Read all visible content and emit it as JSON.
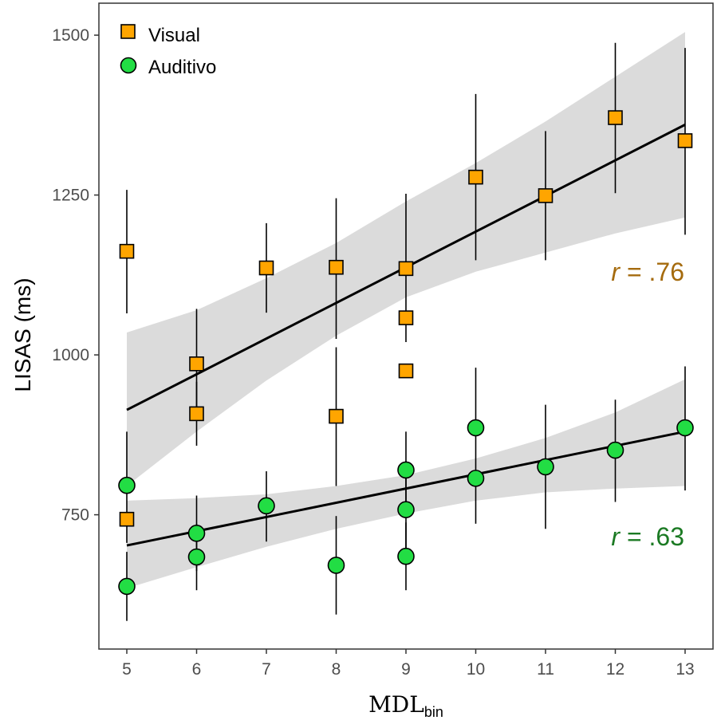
{
  "chart_data": {
    "type": "scatter",
    "xlabel": "MDL",
    "xlabel_sub": "bin",
    "ylabel": "LISAS (ms)",
    "xlim": [
      4.6,
      13.4
    ],
    "ylim": [
      540,
      1550
    ],
    "x_ticks": [
      5,
      6,
      7,
      8,
      9,
      10,
      11,
      12,
      13
    ],
    "y_ticks": [
      750,
      1000,
      1250,
      1500
    ],
    "grid": false,
    "legend_position": "top-left",
    "series": [
      {
        "name": "Visual",
        "marker": "square",
        "color": "#FFA500",
        "points": [
          {
            "x": 5,
            "y": 1162,
            "lo": 1065,
            "hi": 1258
          },
          {
            "x": 5,
            "y": 743,
            "lo": 743,
            "hi": 743
          },
          {
            "x": 6,
            "y": 986,
            "lo": 900,
            "hi": 1072
          },
          {
            "x": 6,
            "y": 908,
            "lo": 858,
            "hi": 958
          },
          {
            "x": 7,
            "y": 1136,
            "lo": 1066,
            "hi": 1206
          },
          {
            "x": 8,
            "y": 1137,
            "lo": 1025,
            "hi": 1245
          },
          {
            "x": 8,
            "y": 904,
            "lo": 795,
            "hi": 1012
          },
          {
            "x": 9,
            "y": 1135,
            "lo": 1020,
            "hi": 1252
          },
          {
            "x": 9,
            "y": 1058,
            "lo": 1058,
            "hi": 1058
          },
          {
            "x": 9,
            "y": 975,
            "lo": 975,
            "hi": 975
          },
          {
            "x": 10,
            "y": 1278,
            "lo": 1148,
            "hi": 1408
          },
          {
            "x": 11,
            "y": 1249,
            "lo": 1148,
            "hi": 1350
          },
          {
            "x": 12,
            "y": 1371,
            "lo": 1253,
            "hi": 1488
          },
          {
            "x": 13,
            "y": 1335,
            "lo": 1188,
            "hi": 1480
          }
        ],
        "fit": {
          "x0": 5,
          "y0": 914,
          "x1": 13,
          "y1": 1360
        },
        "ci": {
          "x": [
            5,
            6,
            7,
            8,
            9,
            10,
            11,
            12,
            13
          ],
          "lo": [
            795,
            880,
            960,
            1030,
            1090,
            1130,
            1160,
            1190,
            1215
          ],
          "hi": [
            1035,
            1070,
            1120,
            1175,
            1240,
            1300,
            1365,
            1435,
            1505
          ]
        },
        "r_label": "r = .76",
        "r_color": "#A56B0E"
      },
      {
        "name": "Auditivo",
        "marker": "circle",
        "color": "#22DD44",
        "points": [
          {
            "x": 5,
            "y": 796,
            "lo": 706,
            "hi": 880
          },
          {
            "x": 5,
            "y": 638,
            "lo": 584,
            "hi": 692
          },
          {
            "x": 6,
            "y": 721,
            "lo": 662,
            "hi": 780
          },
          {
            "x": 6,
            "y": 684,
            "lo": 632,
            "hi": 736
          },
          {
            "x": 7,
            "y": 764,
            "lo": 708,
            "hi": 818
          },
          {
            "x": 8,
            "y": 671,
            "lo": 594,
            "hi": 748
          },
          {
            "x": 9,
            "y": 820,
            "lo": 758,
            "hi": 880
          },
          {
            "x": 9,
            "y": 758,
            "lo": 682,
            "hi": 834
          },
          {
            "x": 9,
            "y": 685,
            "lo": 632,
            "hi": 738
          },
          {
            "x": 10,
            "y": 886,
            "lo": 886,
            "hi": 980
          },
          {
            "x": 10,
            "y": 807,
            "lo": 736,
            "hi": 878
          },
          {
            "x": 11,
            "y": 825,
            "lo": 728,
            "hi": 922
          },
          {
            "x": 12,
            "y": 851,
            "lo": 770,
            "hi": 930
          },
          {
            "x": 13,
            "y": 886,
            "lo": 788,
            "hi": 982
          }
        ],
        "fit": {
          "x0": 5,
          "y0": 702,
          "x1": 13,
          "y1": 880
        },
        "ci": {
          "x": [
            5,
            6,
            7,
            8,
            9,
            10,
            11,
            12,
            13
          ],
          "lo": [
            635,
            668,
            700,
            728,
            752,
            772,
            785,
            791,
            795
          ],
          "hi": [
            772,
            776,
            782,
            795,
            812,
            838,
            870,
            910,
            962
          ]
        },
        "r_label": "r = .63",
        "r_color": "#1B7A23"
      }
    ]
  }
}
